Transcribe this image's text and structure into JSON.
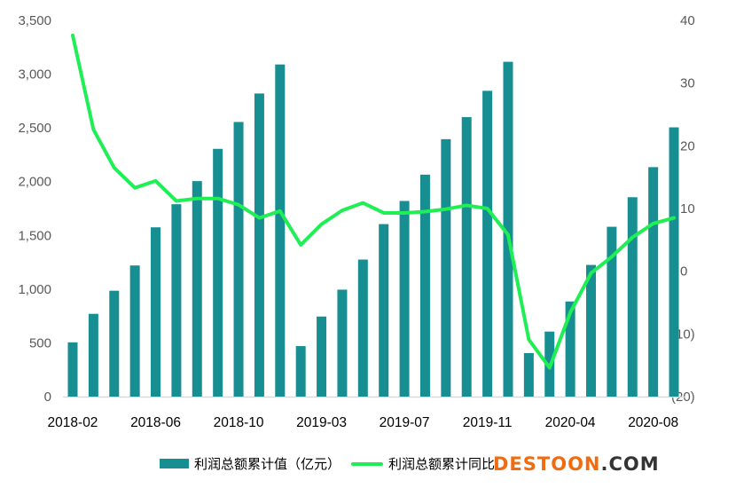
{
  "chart_data": {
    "type": "bar+line",
    "categories": [
      "2018-02",
      "2018-03",
      "2018-04",
      "2018-05",
      "2018-06",
      "2018-07",
      "2018-08",
      "2018-09",
      "2018-10",
      "2018-11",
      "2018-12",
      "2019-02",
      "2019-03",
      "2019-04",
      "2019-05",
      "2019-06",
      "2019-07",
      "2019-08",
      "2019-09",
      "2019-10",
      "2019-11",
      "2019-12",
      "2020-02",
      "2020-03",
      "2020-04",
      "2020-05",
      "2020-06",
      "2020-07",
      "2020-08",
      "2020-09"
    ],
    "x_tick_labels": [
      "2018-02",
      "2018-06",
      "2018-10",
      "2019-03",
      "2019-07",
      "2019-11",
      "2020-04",
      "2020-08"
    ],
    "series": [
      {
        "name": "利润总额累计值（亿元）",
        "type": "bar",
        "axis": "left",
        "color": "#178F92",
        "values": [
          505,
          770,
          985,
          1220,
          1575,
          1790,
          2005,
          2305,
          2555,
          2820,
          3090,
          470,
          745,
          995,
          1275,
          1605,
          1820,
          2065,
          2395,
          2600,
          2845,
          3115,
          405,
          605,
          885,
          1225,
          1580,
          1855,
          2135,
          2505
        ]
      },
      {
        "name": "利润总额累计同比",
        "type": "line",
        "axis": "right",
        "color": "#1FEE55",
        "values": [
          37.6,
          22.6,
          16.5,
          13.3,
          14.4,
          11.2,
          11.6,
          11.6,
          10.6,
          8.5,
          9.6,
          4.2,
          7.5,
          9.7,
          10.9,
          9.3,
          9.3,
          9.5,
          9.9,
          10.5,
          10.0,
          5.8,
          -10.9,
          -15.4,
          -6.6,
          -0.3,
          2.3,
          5.4,
          7.6,
          8.5
        ]
      }
    ],
    "y_left": {
      "range": [
        0,
        3500
      ],
      "ticks": [
        "0",
        "500",
        "1,000",
        "1,500",
        "2,000",
        "2,500",
        "3,000",
        "3,500"
      ]
    },
    "y_right": {
      "range": [
        -20,
        40
      ],
      "ticks": [
        "(20)",
        "(10)",
        "0",
        "10",
        "20",
        "30",
        "40"
      ],
      "negative_color": "#FF0000"
    },
    "grid": false,
    "legend_position": "bottom"
  },
  "watermark": "DESTOON.COM",
  "watermark_parts": {
    "main": "DESTOON",
    "suffix": ".COM"
  }
}
